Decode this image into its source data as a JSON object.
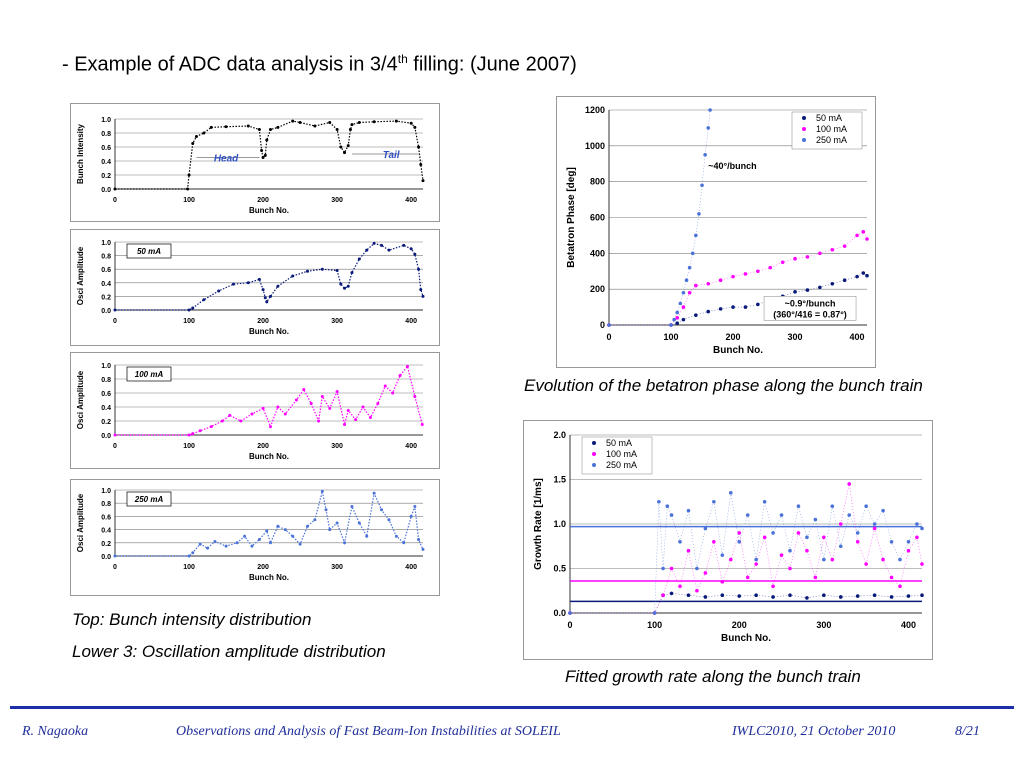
{
  "slide": {
    "title_main": "- Example of ADC data analysis in 3/4",
    "title_sup": "th",
    "title_rest": " filling: (June 2007)",
    "caption_top_left": "Top: Bunch intensity distribution",
    "caption_lower_left": "Lower 3: Oscillation amplitude distribution",
    "caption_phase": "Evolution of the betatron phase along the bunch train",
    "caption_growth": "Fitted growth rate along the bunch train",
    "footer_author": "R. Nagaoka",
    "footer_title": "Observations and Analysis of Fast Beam-Ion Instabilities at SOLEIL",
    "footer_event": "IWLC2010, 21 October 2010",
    "footer_page": "8/21"
  },
  "chart_data": [
    {
      "id": "intensity",
      "type": "line",
      "title": "",
      "xlabel": "Bunch No.",
      "ylabel": "Bunch Intensity",
      "xlim": [
        0,
        416
      ],
      "ylim": [
        0,
        1
      ],
      "xticks": [
        "0",
        "100",
        "200",
        "300",
        "400"
      ],
      "yticks": [
        "0.0",
        "0.2",
        "0.4",
        "0.6",
        "0.8",
        "1.0"
      ],
      "color": "#000000",
      "annotations": [
        "Head",
        "Tail"
      ],
      "series": [
        {
          "x": [
            0,
            98,
            100,
            105,
            110,
            120,
            130,
            150,
            180,
            195,
            198,
            200,
            203,
            205,
            210,
            220,
            240,
            250,
            270,
            290,
            300,
            305,
            310,
            315,
            318,
            320,
            330,
            350,
            380,
            400,
            405,
            410,
            413,
            416
          ],
          "values": [
            0,
            0,
            0.2,
            0.65,
            0.75,
            0.8,
            0.88,
            0.89,
            0.9,
            0.85,
            0.55,
            0.45,
            0.48,
            0.7,
            0.85,
            0.88,
            0.97,
            0.95,
            0.9,
            0.95,
            0.85,
            0.6,
            0.52,
            0.62,
            0.85,
            0.92,
            0.95,
            0.96,
            0.97,
            0.94,
            0.88,
            0.6,
            0.35,
            0.12
          ]
        }
      ]
    },
    {
      "id": "amp50",
      "type": "line",
      "title": "",
      "xlabel": "Bunch No.",
      "ylabel": "Osci Amplitude",
      "xlim": [
        0,
        416
      ],
      "ylim": [
        0,
        1
      ],
      "xticks": [
        "0",
        "100",
        "200",
        "300",
        "400"
      ],
      "yticks": [
        "0.0",
        "0.2",
        "0.4",
        "0.6",
        "0.8",
        "1.0"
      ],
      "color": "#0a1a7a",
      "label": "50 mA",
      "series": [
        {
          "x": [
            0,
            100,
            105,
            120,
            140,
            160,
            180,
            195,
            200,
            203,
            205,
            210,
            220,
            240,
            260,
            280,
            300,
            305,
            310,
            315,
            320,
            330,
            340,
            350,
            360,
            370,
            390,
            400,
            405,
            410,
            413,
            416
          ],
          "values": [
            0,
            0,
            0.03,
            0.15,
            0.28,
            0.38,
            0.4,
            0.45,
            0.3,
            0.18,
            0.12,
            0.2,
            0.35,
            0.5,
            0.57,
            0.6,
            0.58,
            0.38,
            0.32,
            0.35,
            0.55,
            0.75,
            0.88,
            0.98,
            0.95,
            0.88,
            0.95,
            0.9,
            0.82,
            0.6,
            0.3,
            0.2
          ]
        }
      ]
    },
    {
      "id": "amp100",
      "type": "line",
      "title": "",
      "xlabel": "Bunch No.",
      "ylabel": "Osci Amplitude",
      "xlim": [
        0,
        416
      ],
      "ylim": [
        0,
        1
      ],
      "xticks": [
        "0",
        "100",
        "200",
        "300",
        "400"
      ],
      "yticks": [
        "0.0",
        "0.2",
        "0.4",
        "0.6",
        "0.8",
        "1.0"
      ],
      "color": "#ff00ff",
      "label": "100 mA",
      "series": [
        {
          "x": [
            0,
            100,
            105,
            115,
            130,
            145,
            155,
            170,
            185,
            200,
            210,
            220,
            230,
            245,
            255,
            265,
            275,
            280,
            290,
            300,
            310,
            315,
            325,
            335,
            345,
            355,
            365,
            375,
            385,
            395,
            405,
            415
          ],
          "values": [
            0,
            0,
            0.02,
            0.06,
            0.12,
            0.2,
            0.28,
            0.2,
            0.3,
            0.38,
            0.12,
            0.4,
            0.3,
            0.5,
            0.65,
            0.45,
            0.2,
            0.55,
            0.38,
            0.62,
            0.15,
            0.35,
            0.22,
            0.4,
            0.25,
            0.45,
            0.7,
            0.6,
            0.85,
            0.98,
            0.55,
            0.15
          ]
        }
      ]
    },
    {
      "id": "amp250",
      "type": "line",
      "title": "",
      "xlabel": "Bunch No.",
      "ylabel": "Osci Amplitude",
      "xlim": [
        0,
        416
      ],
      "ylim": [
        0,
        1
      ],
      "xticks": [
        "0",
        "100",
        "200",
        "300",
        "400"
      ],
      "yticks": [
        "0.0",
        "0.2",
        "0.4",
        "0.6",
        "0.8",
        "1.0"
      ],
      "color": "#4a72d8",
      "label": "250 mA",
      "series": [
        {
          "x": [
            0,
            100,
            105,
            115,
            125,
            135,
            150,
            165,
            175,
            185,
            195,
            205,
            210,
            220,
            230,
            240,
            250,
            260,
            270,
            280,
            285,
            290,
            300,
            310,
            320,
            330,
            340,
            350,
            360,
            370,
            380,
            390,
            400,
            405,
            410,
            416
          ],
          "values": [
            0,
            0,
            0.05,
            0.18,
            0.12,
            0.22,
            0.15,
            0.2,
            0.3,
            0.15,
            0.25,
            0.38,
            0.2,
            0.45,
            0.4,
            0.3,
            0.18,
            0.45,
            0.55,
            0.98,
            0.7,
            0.4,
            0.5,
            0.2,
            0.75,
            0.5,
            0.3,
            0.95,
            0.7,
            0.55,
            0.3,
            0.2,
            0.6,
            0.75,
            0.25,
            0.1
          ]
        }
      ]
    },
    {
      "id": "phase",
      "type": "scatter",
      "title": "",
      "xlabel": "Bunch No.",
      "ylabel": "Betatron Phase [deg]",
      "xlim": [
        0,
        416
      ],
      "ylim": [
        0,
        1200
      ],
      "xticks": [
        "0",
        "100",
        "200",
        "300",
        "400"
      ],
      "yticks": [
        "0",
        "200",
        "400",
        "600",
        "800",
        "1000",
        "1200"
      ],
      "legend": "top-right",
      "annotations": [
        "~40°/bunch",
        "~0.9°/bunch",
        "(360°/416 = 0.87°)"
      ],
      "series": [
        {
          "name": "50 mA",
          "color": "#0a1a7a",
          "x": [
            0,
            100,
            110,
            120,
            140,
            160,
            180,
            200,
            220,
            240,
            260,
            280,
            300,
            320,
            340,
            360,
            380,
            400,
            410,
            416
          ],
          "values": [
            0,
            0,
            10,
            30,
            55,
            75,
            90,
            100,
            100,
            115,
            140,
            160,
            185,
            195,
            210,
            230,
            250,
            270,
            290,
            275
          ]
        },
        {
          "name": "100 mA",
          "color": "#ff00ff",
          "x": [
            0,
            100,
            110,
            120,
            130,
            140,
            160,
            180,
            200,
            220,
            240,
            260,
            280,
            300,
            320,
            340,
            360,
            380,
            400,
            410,
            416
          ],
          "values": [
            0,
            0,
            40,
            100,
            180,
            220,
            230,
            250,
            270,
            285,
            300,
            320,
            350,
            370,
            380,
            400,
            420,
            440,
            500,
            520,
            480
          ]
        },
        {
          "name": "250 mA",
          "color": "#4a72d8",
          "x": [
            0,
            100,
            105,
            110,
            115,
            120,
            125,
            130,
            135,
            140,
            145,
            150,
            155,
            160,
            163
          ],
          "values": [
            0,
            0,
            30,
            70,
            120,
            180,
            250,
            320,
            400,
            500,
            620,
            780,
            950,
            1100,
            1200
          ]
        }
      ]
    },
    {
      "id": "growth",
      "type": "scatter",
      "title": "",
      "xlabel": "Bunch No.",
      "ylabel": "Growth Rate [1/ms]",
      "xlim": [
        0,
        416
      ],
      "ylim": [
        0,
        2
      ],
      "xticks": [
        "0",
        "100",
        "200",
        "300",
        "400"
      ],
      "yticks": [
        "0.0",
        "0.5",
        "1.0",
        "1.5",
        "2.0"
      ],
      "legend": "top-left",
      "fit_lines": [
        {
          "name": "50 mA",
          "y": 0.13
        },
        {
          "name": "100 mA",
          "y": 0.36
        },
        {
          "name": "250 mA",
          "y": 0.97
        }
      ],
      "series": [
        {
          "name": "50 mA",
          "color": "#0a1a7a",
          "x": [
            0,
            100,
            110,
            120,
            140,
            160,
            180,
            200,
            220,
            240,
            260,
            280,
            300,
            320,
            340,
            360,
            380,
            400,
            416
          ],
          "values": [
            0,
            0,
            0.2,
            0.22,
            0.2,
            0.18,
            0.2,
            0.19,
            0.2,
            0.18,
            0.2,
            0.17,
            0.2,
            0.18,
            0.19,
            0.2,
            0.18,
            0.19,
            0.2
          ]
        },
        {
          "name": "100 mA",
          "color": "#ff00ff",
          "x": [
            0,
            100,
            110,
            120,
            130,
            140,
            150,
            160,
            170,
            180,
            190,
            200,
            210,
            220,
            230,
            240,
            250,
            260,
            270,
            280,
            290,
            300,
            310,
            320,
            330,
            340,
            350,
            360,
            370,
            380,
            390,
            400,
            410,
            416
          ],
          "values": [
            0,
            0,
            0.2,
            0.5,
            0.3,
            0.7,
            0.25,
            0.45,
            0.8,
            0.35,
            0.6,
            0.9,
            0.4,
            0.55,
            0.85,
            0.3,
            0.65,
            0.5,
            0.9,
            0.7,
            0.4,
            0.85,
            0.6,
            1.0,
            1.45,
            0.8,
            0.55,
            0.95,
            0.6,
            0.4,
            0.3,
            0.7,
            0.85,
            0.55
          ]
        },
        {
          "name": "250 mA",
          "color": "#4a72d8",
          "x": [
            0,
            100,
            105,
            110,
            115,
            120,
            130,
            140,
            150,
            160,
            170,
            180,
            190,
            200,
            210,
            220,
            230,
            240,
            250,
            260,
            270,
            280,
            290,
            300,
            310,
            320,
            330,
            340,
            350,
            360,
            370,
            380,
            390,
            400,
            410,
            416
          ],
          "values": [
            0,
            0,
            1.25,
            0.5,
            1.2,
            1.1,
            0.8,
            1.15,
            0.5,
            0.95,
            1.25,
            0.65,
            1.35,
            0.8,
            1.1,
            0.6,
            1.25,
            0.9,
            1.1,
            0.7,
            1.2,
            0.85,
            1.05,
            0.6,
            1.2,
            0.75,
            1.1,
            0.9,
            1.2,
            1.0,
            1.15,
            0.8,
            0.6,
            0.8,
            1.0,
            0.95
          ]
        }
      ]
    }
  ]
}
